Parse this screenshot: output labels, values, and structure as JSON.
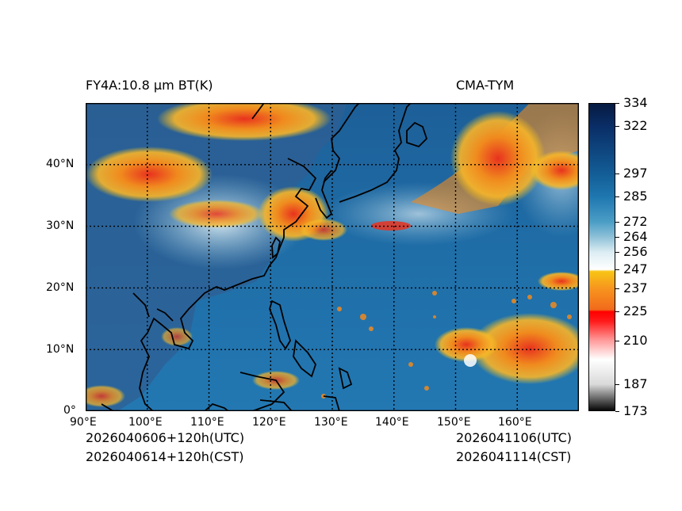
{
  "header": {
    "product": "FY4A:10.8 µm BT(K)",
    "source": "CMA-TYM"
  },
  "footer": {
    "init_utc": "2026040606+120h(UTC)",
    "init_cst": "2026040614+120h(CST)",
    "valid_utc": "2026041106(UTC)",
    "valid_cst": "2026041114(CST)"
  },
  "map": {
    "lon_range": [
      90,
      170
    ],
    "lat_range": [
      0,
      50
    ],
    "lon_ticks": [
      {
        "value": 90,
        "label": "90°E"
      },
      {
        "value": 100,
        "label": "100°E"
      },
      {
        "value": 110,
        "label": "110°E"
      },
      {
        "value": 120,
        "label": "120°E"
      },
      {
        "value": 130,
        "label": "130°E"
      },
      {
        "value": 140,
        "label": "140°E"
      },
      {
        "value": 150,
        "label": "150°E"
      },
      {
        "value": 160,
        "label": "160°E"
      }
    ],
    "lat_ticks": [
      {
        "value": 0,
        "label": "0°"
      },
      {
        "value": 10,
        "label": "10°N"
      },
      {
        "value": 20,
        "label": "20°N"
      },
      {
        "value": 30,
        "label": "30°N"
      },
      {
        "value": 40,
        "label": "40°N"
      }
    ],
    "colors": {
      "ocean": "#1f6ea8",
      "land": "#3b6ea0",
      "cold_cloud": "#f08a1e",
      "very_cold": "#e8321e",
      "cirrus": "#dfeef5"
    }
  },
  "colorbar": {
    "min": 173,
    "max": 334,
    "ticks": [
      334,
      322,
      297,
      285,
      272,
      264,
      256,
      247,
      237,
      225,
      210,
      187,
      173
    ],
    "stops": [
      {
        "value": 173,
        "color": "#000000"
      },
      {
        "value": 187,
        "color": "#d9d9d9"
      },
      {
        "value": 200,
        "color": "#ffffff"
      },
      {
        "value": 210,
        "color": "#ff9a9a"
      },
      {
        "value": 220,
        "color": "#ff1a1a"
      },
      {
        "value": 225,
        "color": "#ff0000"
      },
      {
        "value": 226,
        "color": "#f26a1b"
      },
      {
        "value": 237,
        "color": "#f7941e"
      },
      {
        "value": 246,
        "color": "#f7c515"
      },
      {
        "value": 247,
        "color": "#ffffff"
      },
      {
        "value": 256,
        "color": "#dcedf3"
      },
      {
        "value": 264,
        "color": "#8ec1d8"
      },
      {
        "value": 272,
        "color": "#4a9dc5"
      },
      {
        "value": 285,
        "color": "#1f77b0"
      },
      {
        "value": 297,
        "color": "#135d96"
      },
      {
        "value": 322,
        "color": "#0a2d66"
      },
      {
        "value": 334,
        "color": "#061a40"
      }
    ]
  }
}
